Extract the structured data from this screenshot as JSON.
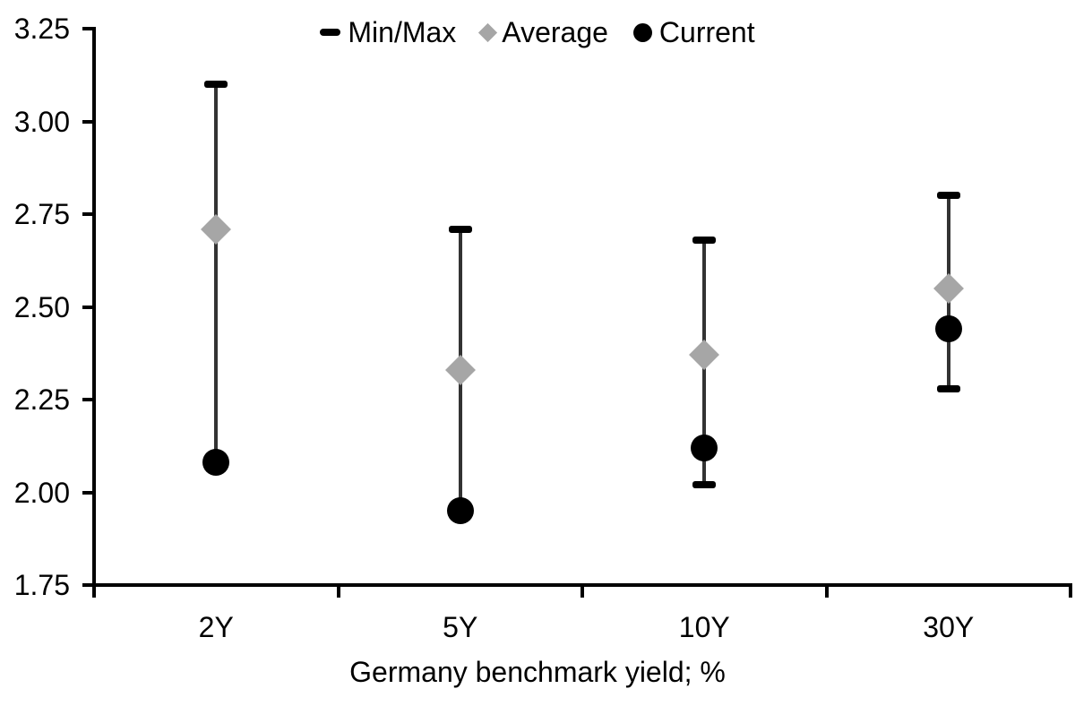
{
  "colors": {
    "background": "#ffffff",
    "axis": "#000000",
    "text": "#000000",
    "whisker_line": "#333333",
    "minmax_cap": "#000000",
    "average_marker": "#a6a6a6",
    "current_marker": "#000000"
  },
  "legend": {
    "items": [
      {
        "id": "minmax",
        "marker": "dash",
        "label": "Min/Max"
      },
      {
        "id": "average",
        "marker": "diamond",
        "label": "Average"
      },
      {
        "id": "current",
        "marker": "circle",
        "label": "Current"
      }
    ]
  },
  "chart_data": {
    "type": "range",
    "title": "",
    "categories": [
      "2Y",
      "5Y",
      "10Y",
      "30Y"
    ],
    "series": [
      {
        "name": "Min/Max",
        "role": "range",
        "marker": "cap",
        "min": [
          2.08,
          1.95,
          2.02,
          2.28
        ],
        "max": [
          3.1,
          2.71,
          2.68,
          2.8
        ]
      },
      {
        "name": "Average",
        "role": "point",
        "marker": "diamond",
        "values": [
          2.71,
          2.33,
          2.37,
          2.55
        ]
      },
      {
        "name": "Current",
        "role": "point",
        "marker": "circle",
        "values": [
          2.08,
          1.95,
          2.12,
          2.44
        ]
      }
    ],
    "xlabel": "Germany benchmark yield; %",
    "ylabel": "",
    "ylim": [
      1.75,
      3.25
    ],
    "ytick_step": 0.25,
    "yticks": [
      3.25,
      3.0,
      2.75,
      2.5,
      2.25,
      2.0,
      1.75
    ],
    "grid": false,
    "legend_position": "top-center"
  }
}
